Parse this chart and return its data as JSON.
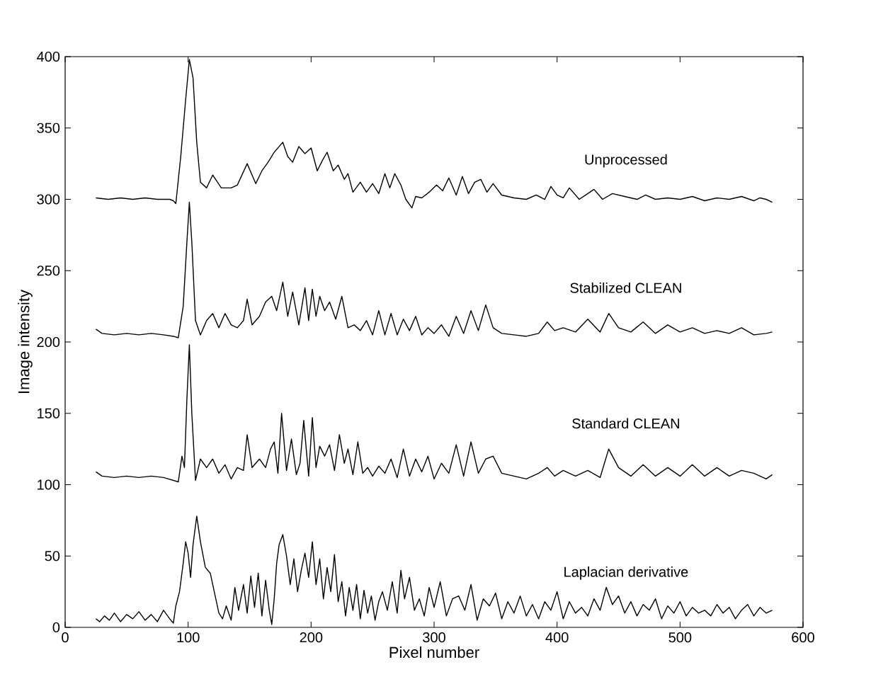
{
  "chart_data": {
    "type": "line",
    "xlabel": "Pixel number",
    "ylabel": "Image intensity",
    "xlim": [
      0,
      600
    ],
    "ylim": [
      0,
      400
    ],
    "xticks": [
      0,
      100,
      200,
      300,
      400,
      500,
      600
    ],
    "yticks": [
      0,
      50,
      100,
      150,
      200,
      250,
      300,
      350,
      400
    ],
    "grid": false,
    "legend": false,
    "marker": "none",
    "line_style": "solid",
    "series": [
      {
        "name": "Unprocessed",
        "color": "#000000",
        "x": [
          25,
          35,
          45,
          55,
          65,
          75,
          85,
          88,
          90,
          94,
          98,
          101,
          104,
          107,
          110,
          115,
          120,
          127,
          135,
          140,
          148,
          155,
          160,
          165,
          170,
          177,
          181,
          185,
          190,
          195,
          200,
          205,
          209,
          213,
          218,
          222,
          227,
          230,
          234,
          240,
          245,
          250,
          255,
          260,
          264,
          268,
          273,
          277,
          282,
          285,
          290,
          296,
          302,
          307,
          312,
          318,
          323,
          328,
          333,
          338,
          343,
          348,
          355,
          365,
          375,
          383,
          390,
          395,
          400,
          405,
          410,
          418,
          425,
          430,
          437,
          445,
          455,
          465,
          472,
          480,
          490,
          500,
          510,
          520,
          530,
          540,
          550,
          560,
          565,
          570,
          575
        ],
        "values": [
          301,
          300,
          301,
          300,
          301,
          300,
          300,
          299,
          297,
          330,
          370,
          398,
          385,
          340,
          312,
          308,
          317,
          308,
          308,
          310,
          325,
          311,
          320,
          326,
          333,
          340,
          330,
          326,
          337,
          332,
          336,
          320,
          327,
          333,
          320,
          324,
          314,
          318,
          305,
          312,
          305,
          311,
          304,
          318,
          308,
          318,
          310,
          300,
          294,
          302,
          301,
          305,
          310,
          306,
          315,
          303,
          316,
          304,
          312,
          314,
          305,
          311,
          303,
          301,
          300,
          303,
          300,
          309,
          303,
          301,
          308,
          300,
          304,
          307,
          300,
          304,
          302,
          300,
          303,
          300,
          301,
          300,
          302,
          299,
          301,
          300,
          302,
          299,
          301,
          300,
          298
        ]
      },
      {
        "name": "Stabilized CLEAN",
        "color": "#000000",
        "x": [
          25,
          30,
          40,
          50,
          60,
          70,
          80,
          88,
          92,
          96,
          99,
          101,
          103,
          106,
          110,
          115,
          120,
          125,
          130,
          135,
          140,
          145,
          148,
          152,
          158,
          163,
          168,
          172,
          177,
          181,
          185,
          190,
          195,
          198,
          201,
          204,
          207,
          211,
          215,
          220,
          225,
          230,
          235,
          240,
          245,
          250,
          255,
          260,
          265,
          270,
          275,
          280,
          285,
          290,
          295,
          300,
          306,
          312,
          318,
          324,
          330,
          336,
          342,
          348,
          355,
          365,
          375,
          385,
          392,
          398,
          405,
          415,
          425,
          435,
          442,
          450,
          460,
          470,
          475,
          480,
          490,
          500,
          510,
          520,
          530,
          540,
          550,
          560,
          570,
          575
        ],
        "values": [
          209,
          206,
          205,
          206,
          205,
          206,
          205,
          204,
          203,
          225,
          270,
          298,
          270,
          215,
          205,
          215,
          220,
          210,
          220,
          212,
          210,
          215,
          230,
          212,
          218,
          228,
          232,
          222,
          242,
          218,
          235,
          212,
          238,
          215,
          237,
          218,
          232,
          222,
          228,
          216,
          232,
          210,
          212,
          208,
          215,
          205,
          222,
          205,
          220,
          205,
          216,
          208,
          218,
          205,
          210,
          206,
          212,
          204,
          218,
          206,
          222,
          208,
          226,
          210,
          206,
          205,
          204,
          206,
          214,
          208,
          210,
          207,
          216,
          207,
          220,
          210,
          207,
          214,
          210,
          206,
          212,
          207,
          210,
          206,
          208,
          206,
          210,
          205,
          206,
          207
        ]
      },
      {
        "name": "Standard CLEAN",
        "color": "#000000",
        "x": [
          25,
          30,
          40,
          50,
          60,
          70,
          80,
          88,
          92,
          95,
          97,
          99,
          101,
          103,
          106,
          110,
          115,
          120,
          125,
          130,
          135,
          140,
          145,
          148,
          152,
          158,
          163,
          167,
          170,
          173,
          176,
          180,
          184,
          188,
          191,
          194,
          198,
          201,
          204,
          207,
          211,
          215,
          219,
          223,
          227,
          230,
          234,
          238,
          242,
          246,
          250,
          255,
          260,
          265,
          270,
          275,
          280,
          285,
          290,
          295,
          300,
          306,
          312,
          318,
          324,
          330,
          336,
          342,
          348,
          355,
          365,
          375,
          385,
          392,
          398,
          405,
          415,
          425,
          435,
          442,
          450,
          460,
          470,
          480,
          490,
          500,
          510,
          520,
          530,
          540,
          550,
          560,
          570,
          575
        ],
        "values": [
          109,
          106,
          105,
          106,
          105,
          106,
          105,
          103,
          102,
          120,
          112,
          160,
          198,
          150,
          103,
          118,
          112,
          118,
          108,
          114,
          104,
          112,
          110,
          135,
          112,
          118,
          112,
          125,
          130,
          108,
          150,
          110,
          132,
          107,
          115,
          145,
          106,
          147,
          112,
          127,
          120,
          128,
          110,
          135,
          115,
          125,
          107,
          130,
          108,
          112,
          106,
          113,
          108,
          118,
          105,
          125,
          106,
          118,
          109,
          120,
          104,
          115,
          108,
          128,
          106,
          130,
          108,
          118,
          120,
          108,
          106,
          104,
          108,
          112,
          106,
          110,
          106,
          110,
          105,
          125,
          112,
          106,
          114,
          106,
          112,
          106,
          114,
          106,
          112,
          106,
          110,
          108,
          104,
          107
        ]
      },
      {
        "name": "Laplacian derivative",
        "color": "#000000",
        "x": [
          25,
          28,
          32,
          36,
          40,
          45,
          50,
          55,
          60,
          65,
          70,
          75,
          80,
          85,
          88,
          90,
          93,
          96,
          98,
          100,
          102,
          104,
          107,
          110,
          114,
          118,
          122,
          125,
          128,
          131,
          135,
          138,
          141,
          145,
          148,
          151,
          154,
          157,
          160,
          163,
          166,
          168,
          170,
          172,
          174,
          177,
          180,
          183,
          186,
          189,
          192,
          195,
          198,
          201,
          204,
          207,
          210,
          213,
          216,
          219,
          222,
          225,
          228,
          231,
          234,
          237,
          240,
          243,
          246,
          249,
          252,
          255,
          258,
          262,
          266,
          270,
          273,
          276,
          280,
          284,
          288,
          292,
          296,
          300,
          305,
          310,
          315,
          320,
          325,
          330,
          335,
          340,
          345,
          350,
          355,
          360,
          365,
          370,
          375,
          380,
          385,
          390,
          395,
          400,
          405,
          410,
          415,
          420,
          425,
          430,
          435,
          440,
          445,
          450,
          455,
          460,
          465,
          470,
          475,
          480,
          485,
          490,
          495,
          500,
          505,
          510,
          515,
          520,
          525,
          530,
          535,
          540,
          545,
          550,
          555,
          560,
          565,
          570,
          575
        ],
        "values": [
          6,
          4,
          8,
          5,
          10,
          4,
          9,
          6,
          11,
          5,
          9,
          4,
          12,
          6,
          3,
          15,
          25,
          45,
          60,
          52,
          35,
          58,
          78,
          60,
          42,
          38,
          22,
          10,
          6,
          15,
          5,
          28,
          12,
          30,
          10,
          36,
          14,
          38,
          8,
          33,
          12,
          2,
          20,
          45,
          58,
          65,
          50,
          30,
          48,
          25,
          40,
          52,
          35,
          60,
          30,
          48,
          20,
          42,
          25,
          51,
          18,
          32,
          8,
          28,
          12,
          30,
          6,
          26,
          10,
          22,
          5,
          18,
          25,
          12,
          32,
          10,
          40,
          20,
          35,
          12,
          20,
          8,
          28,
          14,
          32,
          8,
          20,
          22,
          12,
          30,
          5,
          20,
          15,
          24,
          6,
          18,
          10,
          22,
          8,
          16,
          6,
          18,
          12,
          25,
          6,
          18,
          10,
          14,
          8,
          20,
          12,
          28,
          16,
          22,
          10,
          18,
          8,
          16,
          12,
          20,
          6,
          15,
          10,
          18,
          8,
          14,
          10,
          12,
          8,
          16,
          10,
          14,
          6,
          12,
          16,
          8,
          14,
          10,
          12
        ]
      }
    ]
  }
}
